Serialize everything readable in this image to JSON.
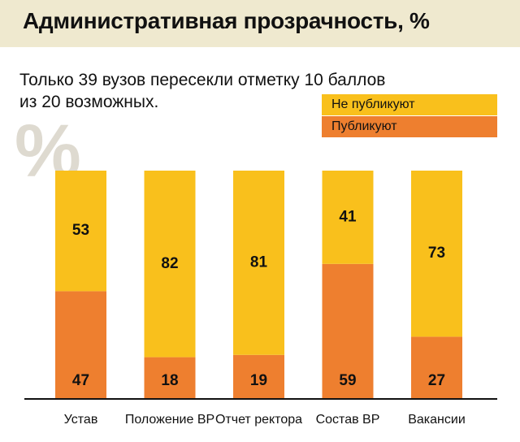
{
  "header": {
    "title": "Административная прозрачность, %"
  },
  "subtitle_lines": [
    "Только 39 вузов пересекли отметку 10 баллов",
    "из 20 возможных."
  ],
  "watermark": "%",
  "colors": {
    "header_band": "#efe9cf",
    "not_publish": "#f9c01c",
    "publish": "#ee7f2f",
    "axis": "#111111"
  },
  "chart_data": {
    "type": "bar",
    "stacked": true,
    "categories": [
      "Устав",
      "Положение ВР",
      "Отчет ректора",
      "Состав ВР",
      "Вакансии"
    ],
    "series": [
      {
        "name": "Публикуют",
        "values": [
          47,
          18,
          19,
          59,
          27
        ]
      },
      {
        "name": "Не публикуют",
        "values": [
          53,
          82,
          81,
          41,
          73
        ]
      }
    ],
    "ylim": [
      0,
      100
    ],
    "grid": false,
    "legend_position": "top-right",
    "legend": [
      "Не публикуют",
      "Публикуют"
    ]
  }
}
